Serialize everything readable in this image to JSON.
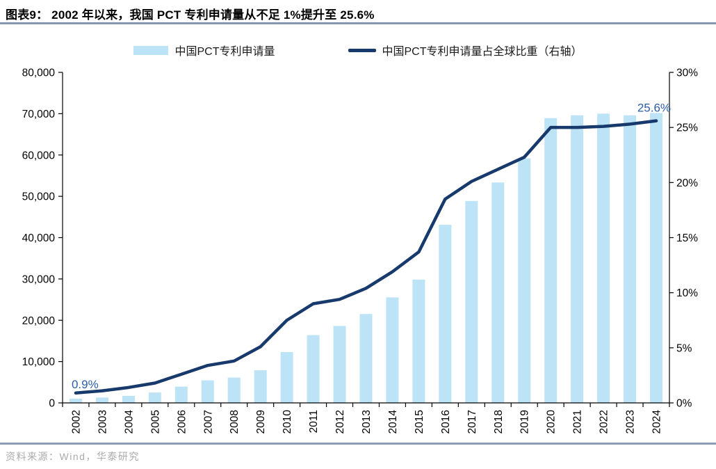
{
  "header": {
    "title": "图表9：  2002 年以来，我国 PCT 专利申请量从不足 1%提升至 25.6%"
  },
  "legend": {
    "items": [
      {
        "label": "中国PCT专利申请量",
        "type": "bar"
      },
      {
        "label": "中国PCT专利申请量占全球比重（右轴）",
        "type": "line"
      }
    ]
  },
  "chart_data": {
    "type": "bar+line",
    "title": "",
    "categories": [
      "2002",
      "2003",
      "2004",
      "2005",
      "2006",
      "2007",
      "2008",
      "2009",
      "2010",
      "2011",
      "2012",
      "2013",
      "2014",
      "2015",
      "2016",
      "2017",
      "2018",
      "2019",
      "2020",
      "2021",
      "2022",
      "2023",
      "2024"
    ],
    "series": [
      {
        "name": "中国PCT专利申请量",
        "type": "bar",
        "axis": "left",
        "values": [
          1018,
          1295,
          1706,
          2503,
          3942,
          5455,
          6120,
          7900,
          12296,
          16402,
          18627,
          21516,
          25539,
          29837,
          43091,
          48875,
          53347,
          59193,
          68923,
          69611,
          70015,
          69610,
          70160
        ]
      },
      {
        "name": "中国PCT专利申请量占全球比重（右轴）",
        "type": "line",
        "axis": "right",
        "values": [
          0.9,
          1.1,
          1.4,
          1.8,
          2.6,
          3.4,
          3.8,
          5.1,
          7.5,
          9.0,
          9.4,
          10.4,
          11.9,
          13.7,
          18.5,
          20.1,
          21.2,
          22.3,
          25.0,
          25.0,
          25.1,
          25.3,
          25.6
        ]
      }
    ],
    "left_axis": {
      "min": 0,
      "max": 80000,
      "step": 10000,
      "labels": [
        "0",
        "10,000",
        "20,000",
        "30,000",
        "40,000",
        "50,000",
        "60,000",
        "70,000",
        "80,000"
      ]
    },
    "right_axis": {
      "min": 0,
      "max": 30,
      "step": 5,
      "labels": [
        "0%",
        "5%",
        "10%",
        "15%",
        "20%",
        "25%",
        "30%"
      ]
    },
    "annotations": [
      {
        "text": "0.9%",
        "year": "2002",
        "placement": "start"
      },
      {
        "text": "25.6%",
        "year": "2024",
        "placement": "end"
      }
    ],
    "grid": false,
    "legend_position": "top"
  },
  "footer": {
    "source_label": "资料来源：Wind，华泰研究"
  },
  "colors": {
    "bar_fill": "#BDE3F6",
    "line_stroke": "#17396B",
    "annotation_text": "#2B5CA9",
    "axis_stroke": "#000000",
    "divider": "#8496B0",
    "source_text": "#ABABAB"
  }
}
